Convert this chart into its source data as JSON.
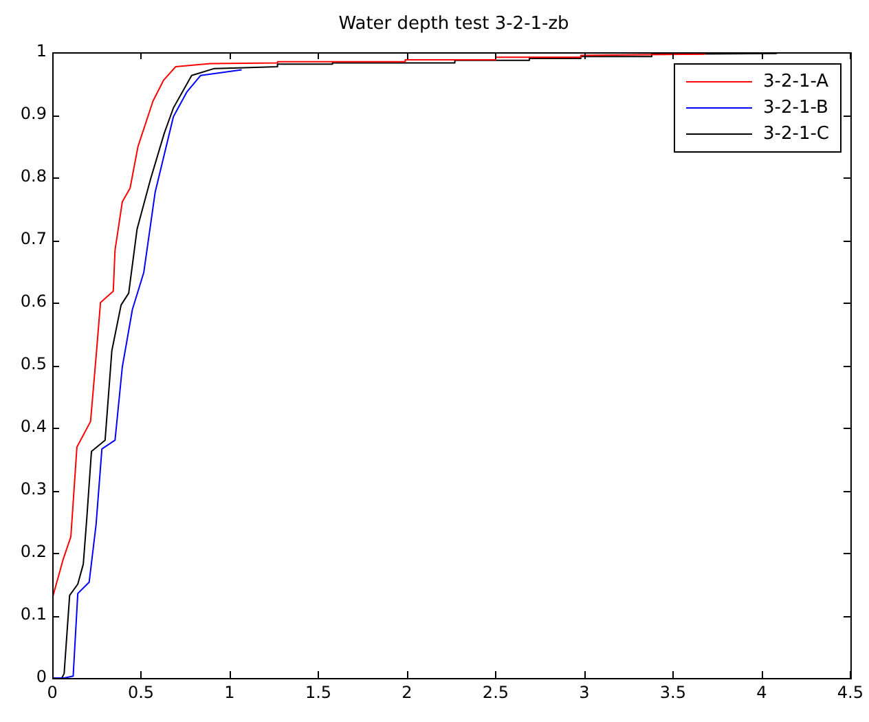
{
  "chart_data": {
    "type": "line",
    "title": "Water depth test 3-2-1-zb",
    "xlim": [
      0,
      4.5
    ],
    "xticks": [
      0,
      0.5,
      1,
      1.5,
      2,
      2.5,
      3,
      3.5,
      4,
      4.5
    ],
    "ylim": [
      0,
      1
    ],
    "yticks": [
      0,
      0.1,
      0.2,
      0.3,
      0.4,
      0.5,
      0.6,
      0.7,
      0.8,
      0.9,
      1
    ],
    "grid": false,
    "legend": "top right",
    "marker": "none",
    "line_style": "solid",
    "series": [
      {
        "name": "3-2-1-A",
        "color": "#ff0000",
        "x": [
          0,
          0,
          0.062,
          0.105,
          0.139,
          0.216,
          0.252,
          0.272,
          0.344,
          0.354,
          0.395,
          0.439,
          0.483,
          0.568,
          0.627,
          0.696,
          0.89,
          1.27,
          1.27,
          1.99,
          1.99,
          2.5,
          2.5,
          2.98,
          2.98,
          3.67,
          3.7
        ],
        "values": [
          0,
          0.127,
          0.19,
          0.226,
          0.369,
          0.41,
          0.53,
          0.6,
          0.618,
          0.684,
          0.761,
          0.783,
          0.849,
          0.922,
          0.955,
          0.977,
          0.982,
          0.983,
          0.985,
          0.985,
          0.988,
          0.988,
          0.992,
          0.992,
          0.995,
          0.997,
          1
        ]
      },
      {
        "name": "3-2-1-B",
        "color": "#0000ff",
        "x": [
          0,
          0.067,
          0.118,
          0.144,
          0.208,
          0.247,
          0.28,
          0.354,
          0.395,
          0.452,
          0.516,
          0.58,
          0.683,
          0.76,
          0.837,
          1.068
        ],
        "values": [
          0,
          0,
          0.003,
          0.135,
          0.153,
          0.245,
          0.366,
          0.38,
          0.497,
          0.589,
          0.648,
          0.776,
          0.897,
          0.937,
          0.963,
          0.972
        ]
      },
      {
        "name": "3-2-1-C",
        "color": "#000000",
        "x": [
          0,
          0.054,
          0.067,
          0.098,
          0.144,
          0.175,
          0.195,
          0.221,
          0.298,
          0.336,
          0.388,
          0.431,
          0.478,
          0.555,
          0.632,
          0.683,
          0.786,
          0.914,
          1.05,
          1.27,
          1.27,
          1.58,
          1.58,
          2.27,
          2.27,
          2.69,
          2.69,
          2.98,
          2.98,
          3.38,
          3.38,
          4.08,
          4.1
        ],
        "values": [
          0,
          0,
          0.007,
          0.132,
          0.15,
          0.182,
          0.256,
          0.362,
          0.38,
          0.523,
          0.596,
          0.615,
          0.717,
          0.798,
          0.871,
          0.911,
          0.963,
          0.974,
          0.975,
          0.977,
          0.981,
          0.981,
          0.983,
          0.983,
          0.987,
          0.987,
          0.99,
          0.99,
          0.993,
          0.993,
          0.997,
          0.998,
          1
        ]
      }
    ]
  }
}
